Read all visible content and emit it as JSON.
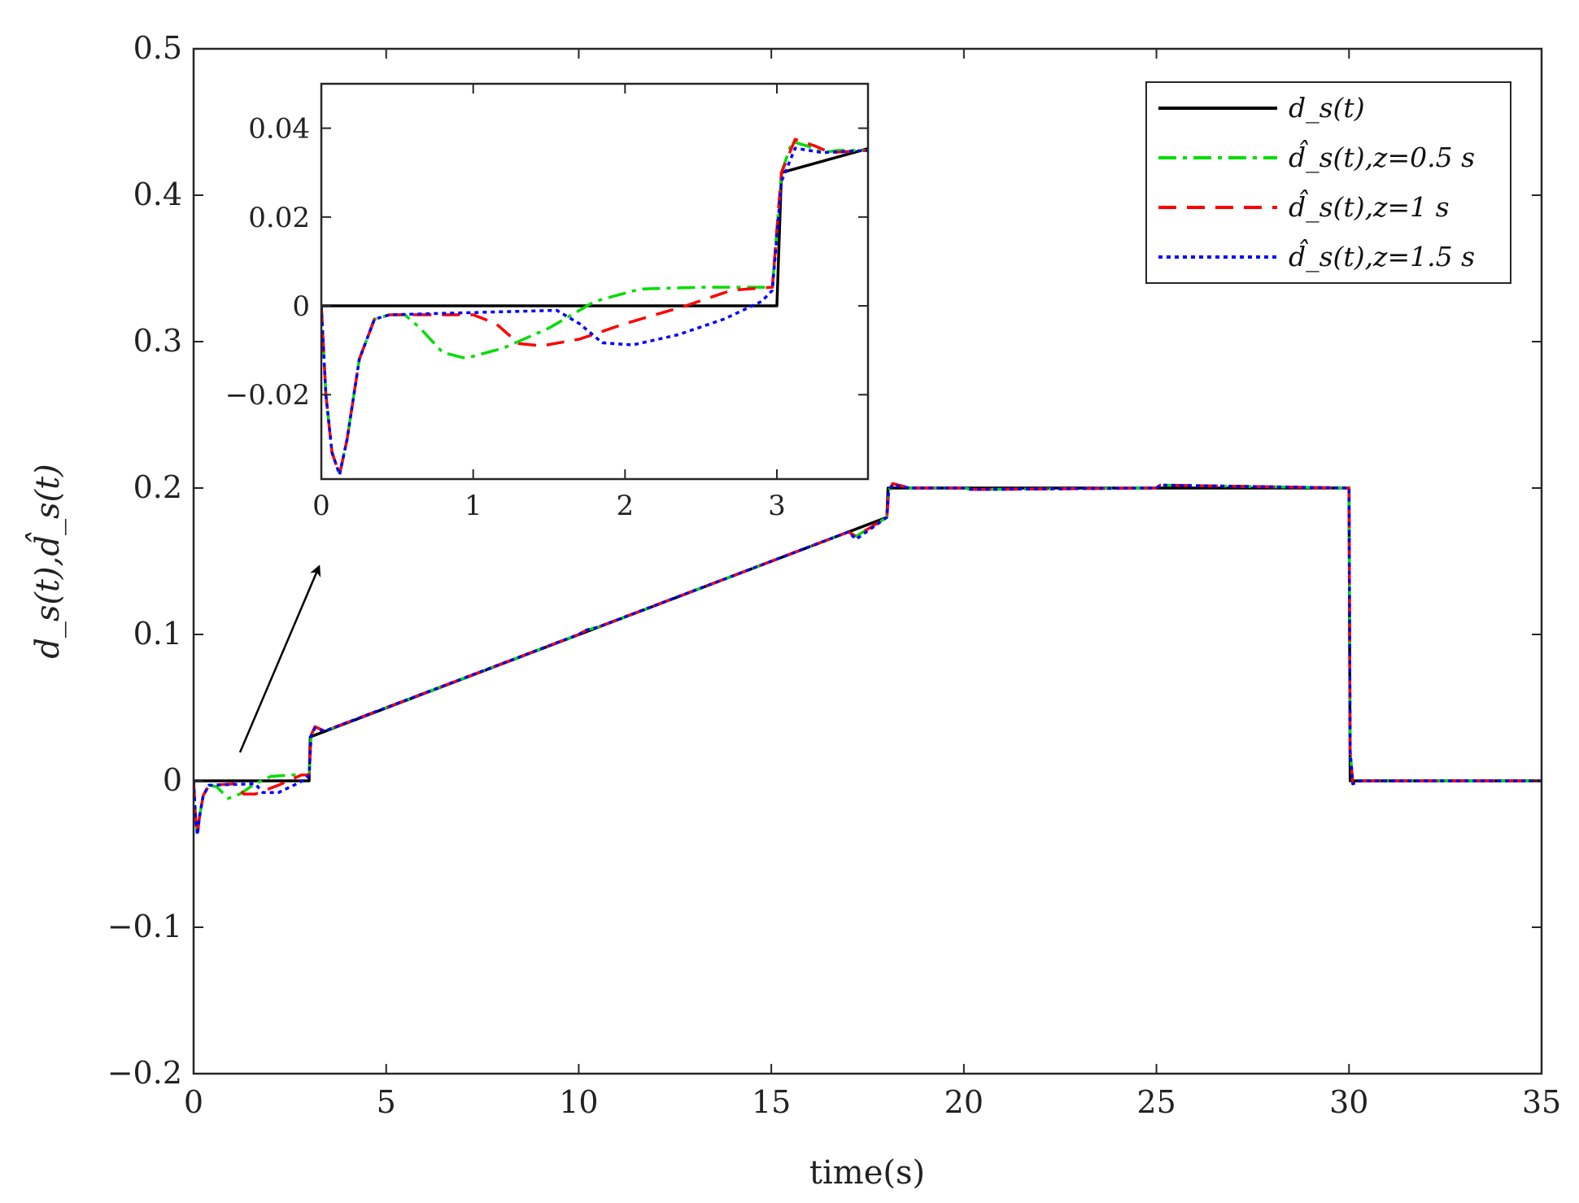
{
  "chart_data": [
    {
      "id": "main",
      "type": "line",
      "xlabel": "time(s)",
      "ylabel": "d_s(t),d̂_s(t)",
      "xlim": [
        0,
        35
      ],
      "ylim": [
        -0.2,
        0.5
      ],
      "xticks": [
        0,
        5,
        10,
        15,
        20,
        25,
        30,
        35
      ],
      "yticks": [
        -0.2,
        -0.1,
        0,
        0.1,
        0.2,
        0.3,
        0.4,
        0.5
      ],
      "xtick_labels": [
        "0",
        "5",
        "10",
        "15",
        "20",
        "25",
        "30",
        "35"
      ],
      "ytick_labels": [
        "−0.2",
        "−0.1",
        "0",
        "0.1",
        "0.2",
        "0.3",
        "0.4",
        "0.5"
      ],
      "grid": false,
      "legend_position": "top-right",
      "series": [
        {
          "name": "d_s(t)",
          "color": "#000000",
          "style": "solid",
          "points": [
            [
              0,
              0
            ],
            [
              3,
              0
            ],
            [
              3.03,
              0.03
            ],
            [
              18,
              0.18
            ],
            [
              18.03,
              0.2
            ],
            [
              30,
              0.2
            ],
            [
              30.03,
              0
            ],
            [
              35,
              0
            ]
          ]
        },
        {
          "name": "d̂_s(t),z=0.5 s",
          "color": "#00dd00",
          "style": "dashdot",
          "points": [
            [
              0,
              0
            ],
            [
              0.05,
              -0.025
            ],
            [
              0.1,
              -0.037
            ],
            [
              0.15,
              -0.025
            ],
            [
              0.25,
              -0.01
            ],
            [
              0.4,
              -0.003
            ],
            [
              0.6,
              -0.004
            ],
            [
              0.9,
              -0.012
            ],
            [
              1.2,
              -0.009
            ],
            [
              1.6,
              -0.002
            ],
            [
              2,
              0.003
            ],
            [
              2.5,
              0.004
            ],
            [
              3,
              0.004
            ],
            [
              3.05,
              0.031
            ],
            [
              3.15,
              0.037
            ],
            [
              3.4,
              0.034
            ],
            [
              4,
              0.04
            ],
            [
              10,
              0.1
            ],
            [
              10.2,
              0.103
            ],
            [
              10.5,
              0.105
            ],
            [
              14,
              0.14
            ],
            [
              14.3,
              0.143
            ],
            [
              17,
              0.17
            ],
            [
              17.2,
              0.167
            ],
            [
              18,
              0.18
            ],
            [
              18.05,
              0.198
            ],
            [
              18.15,
              0.203
            ],
            [
              18.6,
              0.2
            ],
            [
              20,
              0.2
            ],
            [
              20.2,
              0.199
            ],
            [
              25,
              0.2
            ],
            [
              25.1,
              0.202
            ],
            [
              30,
              0.2
            ],
            [
              30.03,
              0.02
            ],
            [
              30.1,
              -0.002
            ],
            [
              30.3,
              0
            ],
            [
              35,
              0
            ]
          ]
        },
        {
          "name": "d̂_s(t),z=1 s",
          "color": "#ff0000",
          "style": "dashed",
          "points": [
            [
              0,
              0
            ],
            [
              0.05,
              -0.025
            ],
            [
              0.1,
              -0.037
            ],
            [
              0.15,
              -0.025
            ],
            [
              0.25,
              -0.01
            ],
            [
              0.4,
              -0.003
            ],
            [
              1.1,
              -0.002
            ],
            [
              1.3,
              -0.009
            ],
            [
              1.6,
              -0.009
            ],
            [
              2.2,
              -0.003
            ],
            [
              2.8,
              0.004
            ],
            [
              3,
              0.004
            ],
            [
              3.05,
              0.031
            ],
            [
              3.15,
              0.037
            ],
            [
              3.4,
              0.034
            ],
            [
              4,
              0.04
            ],
            [
              10,
              0.1
            ],
            [
              10.2,
              0.103
            ],
            [
              10.5,
              0.105
            ],
            [
              14,
              0.14
            ],
            [
              14.3,
              0.143
            ],
            [
              17,
              0.17
            ],
            [
              17.2,
              0.167
            ],
            [
              18,
              0.18
            ],
            [
              18.05,
              0.198
            ],
            [
              18.15,
              0.203
            ],
            [
              18.6,
              0.2
            ],
            [
              20,
              0.2
            ],
            [
              20.2,
              0.199
            ],
            [
              25,
              0.2
            ],
            [
              25.1,
              0.202
            ],
            [
              30,
              0.2
            ],
            [
              30.03,
              0.02
            ],
            [
              30.1,
              -0.002
            ],
            [
              30.3,
              0
            ],
            [
              35,
              0
            ]
          ]
        },
        {
          "name": "d̂_s(t),z=1.5 s",
          "color": "#0000ff",
          "style": "dotted",
          "points": [
            [
              0,
              0
            ],
            [
              0.05,
              -0.025
            ],
            [
              0.1,
              -0.037
            ],
            [
              0.15,
              -0.025
            ],
            [
              0.25,
              -0.01
            ],
            [
              0.4,
              -0.003
            ],
            [
              1.6,
              -0.002
            ],
            [
              1.8,
              -0.008
            ],
            [
              2.2,
              -0.008
            ],
            [
              2.6,
              -0.003
            ],
            [
              2.9,
              0.001
            ],
            [
              3,
              0.004
            ],
            [
              3.05,
              0.031
            ],
            [
              3.15,
              0.036
            ],
            [
              3.4,
              0.034
            ],
            [
              4,
              0.04
            ],
            [
              10,
              0.1
            ],
            [
              10.2,
              0.103
            ],
            [
              10.5,
              0.105
            ],
            [
              14,
              0.14
            ],
            [
              14.3,
              0.143
            ],
            [
              17,
              0.17
            ],
            [
              17.2,
              0.165
            ],
            [
              18,
              0.18
            ],
            [
              18.05,
              0.198
            ],
            [
              18.15,
              0.202
            ],
            [
              18.6,
              0.2
            ],
            [
              20,
              0.2
            ],
            [
              20.2,
              0.199
            ],
            [
              25,
              0.2
            ],
            [
              25.1,
              0.202
            ],
            [
              30,
              0.2
            ],
            [
              30.03,
              0.02
            ],
            [
              30.1,
              -0.002
            ],
            [
              30.3,
              0
            ],
            [
              35,
              0
            ]
          ]
        }
      ]
    },
    {
      "id": "inset",
      "type": "line",
      "xlabel": "",
      "ylabel": "",
      "xlim": [
        0,
        3.6
      ],
      "ylim": [
        -0.039,
        0.05
      ],
      "xticks": [
        0,
        1,
        2,
        3
      ],
      "yticks": [
        -0.02,
        0,
        0.02,
        0.04
      ],
      "xtick_labels": [
        "0",
        "1",
        "2",
        "3"
      ],
      "ytick_labels": [
        "−0.02",
        "0",
        "0.02",
        "0.04"
      ],
      "grid": false,
      "series": [
        {
          "name": "d_s(t)",
          "color": "#000000",
          "style": "solid",
          "points": [
            [
              0,
              0
            ],
            [
              3,
              0
            ],
            [
              3.03,
              0.03
            ],
            [
              3.6,
              0.0354
            ]
          ]
        },
        {
          "name": "d̂_s(t),z=0.5 s",
          "color": "#00dd00",
          "style": "dashdot",
          "points": [
            [
              0,
              0
            ],
            [
              0.03,
              -0.02
            ],
            [
              0.07,
              -0.033
            ],
            [
              0.12,
              -0.038
            ],
            [
              0.17,
              -0.03
            ],
            [
              0.25,
              -0.012
            ],
            [
              0.35,
              -0.003
            ],
            [
              0.45,
              -0.002
            ],
            [
              0.55,
              -0.002
            ],
            [
              0.65,
              -0.005
            ],
            [
              0.8,
              -0.0105
            ],
            [
              0.95,
              -0.0118
            ],
            [
              1.2,
              -0.0095
            ],
            [
              1.5,
              -0.005
            ],
            [
              1.8,
              0.001
            ],
            [
              2.1,
              0.0038
            ],
            [
              2.5,
              0.0042
            ],
            [
              2.97,
              0.0042
            ],
            [
              3.03,
              0.03
            ],
            [
              3.1,
              0.037
            ],
            [
              3.2,
              0.036
            ],
            [
              3.3,
              0.0345
            ],
            [
              3.4,
              0.035
            ],
            [
              3.6,
              0.035
            ]
          ]
        },
        {
          "name": "d̂_s(t),z=1 s",
          "color": "#ff0000",
          "style": "dashed",
          "points": [
            [
              0,
              0
            ],
            [
              0.03,
              -0.02
            ],
            [
              0.07,
              -0.033
            ],
            [
              0.12,
              -0.038
            ],
            [
              0.17,
              -0.03
            ],
            [
              0.25,
              -0.012
            ],
            [
              0.35,
              -0.003
            ],
            [
              0.45,
              -0.002
            ],
            [
              1.0,
              -0.002
            ],
            [
              1.15,
              -0.004
            ],
            [
              1.3,
              -0.0085
            ],
            [
              1.45,
              -0.009
            ],
            [
              1.7,
              -0.0075
            ],
            [
              2.0,
              -0.004
            ],
            [
              2.4,
              0
            ],
            [
              2.7,
              0.0035
            ],
            [
              2.97,
              0.0042
            ],
            [
              3.03,
              0.03
            ],
            [
              3.12,
              0.0375
            ],
            [
              3.25,
              0.036
            ],
            [
              3.35,
              0.0345
            ],
            [
              3.6,
              0.035
            ]
          ]
        },
        {
          "name": "d̂_s(t),z=1.5 s",
          "color": "#0000ff",
          "style": "dotted",
          "points": [
            [
              0,
              0
            ],
            [
              0.03,
              -0.02
            ],
            [
              0.07,
              -0.033
            ],
            [
              0.12,
              -0.038
            ],
            [
              0.17,
              -0.03
            ],
            [
              0.25,
              -0.012
            ],
            [
              0.35,
              -0.003
            ],
            [
              0.45,
              -0.002
            ],
            [
              1.55,
              -0.001
            ],
            [
              1.7,
              -0.004
            ],
            [
              1.85,
              -0.0083
            ],
            [
              2.05,
              -0.0088
            ],
            [
              2.35,
              -0.0065
            ],
            [
              2.65,
              -0.003
            ],
            [
              2.9,
              0.001
            ],
            [
              2.97,
              0.0035
            ],
            [
              3.03,
              0.028
            ],
            [
              3.12,
              0.0355
            ],
            [
              3.3,
              0.0345
            ],
            [
              3.6,
              0.035
            ]
          ]
        }
      ]
    }
  ]
}
